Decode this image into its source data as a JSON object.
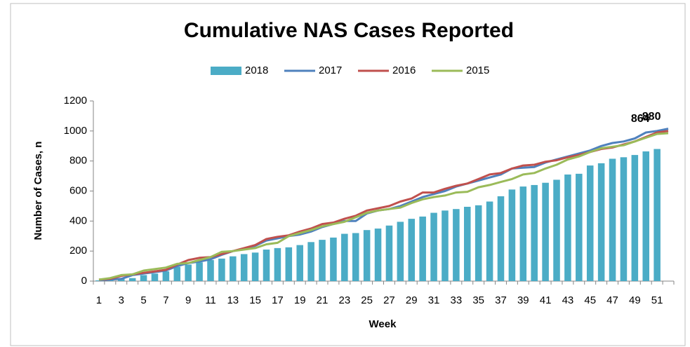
{
  "chart_data": {
    "type": "bar_line",
    "title": "Cumulative NAS Cases Reported",
    "x_label": "Week",
    "y_label": "Number of Cases, n",
    "categories": [
      1,
      null,
      3,
      null,
      5,
      null,
      7,
      null,
      9,
      null,
      11,
      null,
      13,
      null,
      15,
      null,
      17,
      null,
      19,
      null,
      21,
      null,
      23,
      null,
      25,
      null,
      27,
      null,
      29,
      null,
      31,
      null,
      33,
      null,
      35,
      null,
      37,
      null,
      39,
      null,
      41,
      null,
      43,
      null,
      45,
      null,
      47,
      null,
      49,
      null,
      51,
      null
    ],
    "ylim": [
      0,
      1200
    ],
    "yticks": [
      0,
      200,
      400,
      600,
      800,
      1000,
      1200
    ],
    "grid": false,
    "legend": "top",
    "series": [
      {
        "name": "2018",
        "kind": "bar",
        "color": "#4bacc6",
        "values": [
          5,
          10,
          15,
          20,
          40,
          50,
          65,
          95,
          110,
          125,
          140,
          150,
          165,
          180,
          190,
          210,
          220,
          225,
          240,
          260,
          275,
          290,
          315,
          320,
          340,
          350,
          370,
          395,
          415,
          430,
          455,
          470,
          480,
          495,
          505,
          530,
          565,
          610,
          630,
          640,
          655,
          675,
          710,
          715,
          770,
          785,
          815,
          825,
          840,
          864,
          880,
          null
        ],
        "value_labels": [
          null,
          null,
          null,
          null,
          null,
          null,
          null,
          null,
          null,
          null,
          null,
          null,
          null,
          null,
          null,
          null,
          null,
          null,
          null,
          null,
          null,
          null,
          null,
          null,
          null,
          null,
          null,
          null,
          null,
          null,
          null,
          null,
          null,
          null,
          null,
          null,
          null,
          null,
          null,
          null,
          null,
          null,
          null,
          null,
          null,
          null,
          null,
          null,
          null,
          "864",
          "880",
          null
        ]
      },
      {
        "name": "2017",
        "kind": "line",
        "color": "#4f81bd",
        "values": [
          5,
          10,
          15,
          40,
          50,
          60,
          70,
          100,
          120,
          130,
          145,
          175,
          200,
          215,
          235,
          270,
          285,
          300,
          310,
          330,
          360,
          380,
          400,
          400,
          450,
          470,
          480,
          500,
          530,
          560,
          580,
          600,
          630,
          650,
          670,
          690,
          710,
          750,
          755,
          760,
          790,
          810,
          830,
          850,
          870,
          900,
          920,
          930,
          950,
          990,
          1000,
          1015
        ]
      },
      {
        "name": "2016",
        "kind": "line",
        "color": "#c0504d",
        "values": [
          10,
          15,
          35,
          45,
          55,
          65,
          75,
          110,
          140,
          155,
          160,
          180,
          200,
          220,
          240,
          280,
          295,
          305,
          330,
          350,
          380,
          390,
          415,
          435,
          470,
          485,
          500,
          530,
          550,
          590,
          590,
          615,
          635,
          650,
          680,
          710,
          720,
          750,
          770,
          775,
          795,
          805,
          825,
          840,
          860,
          880,
          890,
          910,
          930,
          960,
          990,
          1000
        ]
      },
      {
        "name": "2015",
        "kind": "line",
        "color": "#9bbb59",
        "values": [
          10,
          20,
          40,
          45,
          70,
          80,
          90,
          115,
          120,
          140,
          160,
          195,
          200,
          210,
          220,
          245,
          255,
          300,
          320,
          340,
          365,
          380,
          395,
          425,
          455,
          470,
          480,
          490,
          520,
          545,
          560,
          570,
          590,
          595,
          625,
          640,
          660,
          680,
          710,
          720,
          750,
          775,
          810,
          830,
          860,
          885,
          895,
          905,
          930,
          955,
          980,
          985
        ]
      }
    ]
  }
}
